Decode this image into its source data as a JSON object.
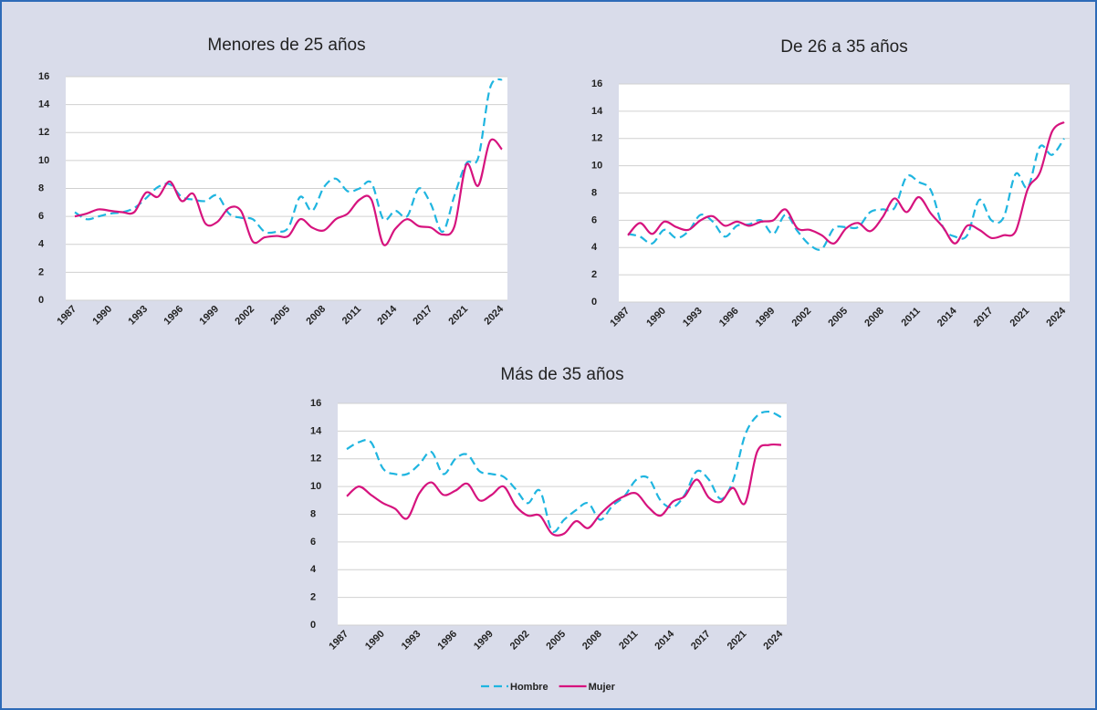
{
  "chart_data": [
    {
      "type": "line",
      "title": "Menores de 25 años",
      "categories": [
        "1987",
        null,
        null,
        "1990",
        null,
        null,
        "1993",
        null,
        null,
        "1996",
        null,
        null,
        "1999",
        null,
        null,
        "2002",
        null,
        null,
        "2005",
        null,
        null,
        "2008",
        null,
        null,
        "2011",
        null,
        null,
        "2014",
        null,
        null,
        "2017",
        null,
        null,
        "2021",
        null,
        null,
        "2024"
      ],
      "ylim": [
        0,
        16
      ],
      "yticks": [
        0,
        2,
        4,
        6,
        8,
        10,
        12,
        14,
        16
      ],
      "grid": true,
      "series": [
        {
          "color": "#1fb5e0",
          "dashed": true,
          "values": [
            6.3,
            5.8,
            6.0,
            6.2,
            6.3,
            6.6,
            7.3,
            8.1,
            8.3,
            7.4,
            7.2,
            7.1,
            7.5,
            6.2,
            5.9,
            5.8,
            4.9,
            4.9,
            5.2,
            7.4,
            6.4,
            8.1,
            8.7,
            7.8,
            8.0,
            8.4,
            5.8,
            6.4,
            6.0,
            8.0,
            6.9,
            4.9,
            7.5,
            9.8,
            10.2,
            15.2,
            15.8
          ]
        },
        {
          "color": "#d6137e",
          "dashed": false,
          "values": [
            6.0,
            6.2,
            6.5,
            6.4,
            6.3,
            6.3,
            7.7,
            7.4,
            8.5,
            7.1,
            7.6,
            5.5,
            5.6,
            6.6,
            6.4,
            4.2,
            4.5,
            4.6,
            4.6,
            5.8,
            5.2,
            5.0,
            5.8,
            6.2,
            7.2,
            7.2,
            4.0,
            5.1,
            5.8,
            5.3,
            5.2,
            4.7,
            5.3,
            9.7,
            8.2,
            11.4,
            10.8
          ]
        }
      ]
    },
    {
      "type": "line",
      "title": "De 26 a 35 años",
      "categories": [
        "1987",
        null,
        null,
        "1990",
        null,
        null,
        "1993",
        null,
        null,
        "1996",
        null,
        null,
        "1999",
        null,
        null,
        "2002",
        null,
        null,
        "2005",
        null,
        null,
        "2008",
        null,
        null,
        "2011",
        null,
        null,
        "2014",
        null,
        null,
        "2017",
        null,
        null,
        "2021",
        null,
        null,
        "2024"
      ],
      "ylim": [
        0,
        16
      ],
      "yticks": [
        0,
        2,
        4,
        6,
        8,
        10,
        12,
        14,
        16
      ],
      "grid": true,
      "series": [
        {
          "color": "#1fb5e0",
          "dashed": true,
          "values": [
            5.0,
            4.8,
            4.3,
            5.3,
            4.7,
            5.2,
            6.4,
            5.9,
            4.8,
            5.6,
            5.7,
            6.0,
            5.0,
            6.4,
            5.2,
            4.2,
            3.9,
            5.4,
            5.5,
            5.5,
            6.6,
            6.8,
            6.9,
            9.2,
            8.8,
            8.2,
            5.5,
            4.8,
            4.9,
            7.5,
            6.0,
            6.2,
            9.4,
            8.4,
            11.4,
            10.8,
            12.0
          ]
        },
        {
          "color": "#d6137e",
          "dashed": false,
          "values": [
            4.9,
            5.8,
            5.0,
            5.9,
            5.5,
            5.3,
            6.0,
            6.3,
            5.6,
            5.9,
            5.6,
            5.9,
            6.0,
            6.8,
            5.4,
            5.3,
            4.9,
            4.3,
            5.4,
            5.8,
            5.2,
            6.2,
            7.6,
            6.6,
            7.7,
            6.5,
            5.5,
            4.3,
            5.6,
            5.3,
            4.7,
            4.9,
            5.2,
            8.3,
            9.5,
            12.5,
            13.2
          ]
        }
      ]
    },
    {
      "type": "line",
      "title": "Más de 35 años",
      "categories": [
        "1987",
        null,
        null,
        "1990",
        null,
        null,
        "1993",
        null,
        null,
        "1996",
        null,
        null,
        "1999",
        null,
        null,
        "2002",
        null,
        null,
        "2005",
        null,
        null,
        "2008",
        null,
        null,
        "2011",
        null,
        null,
        "2014",
        null,
        null,
        "2017",
        null,
        null,
        "2021",
        null,
        null,
        "2024"
      ],
      "ylim": [
        0,
        16
      ],
      "yticks": [
        0,
        2,
        4,
        6,
        8,
        10,
        12,
        14,
        16
      ],
      "grid": true,
      "legend": "bottom",
      "series": [
        {
          "name": "Hombre",
          "color": "#1fb5e0",
          "dashed": true,
          "values": [
            12.7,
            13.2,
            13.2,
            11.3,
            10.9,
            10.9,
            11.6,
            12.5,
            10.9,
            12.0,
            12.3,
            11.1,
            10.9,
            10.7,
            9.8,
            8.8,
            9.7,
            6.8,
            7.6,
            8.3,
            8.8,
            7.6,
            8.6,
            9.3,
            10.5,
            10.6,
            9.0,
            8.5,
            9.4,
            11.1,
            10.5,
            9.1,
            10.4,
            13.7,
            15.1,
            15.4,
            15.0
          ]
        },
        {
          "name": "Mujer",
          "color": "#d6137e",
          "dashed": false,
          "values": [
            9.3,
            10.0,
            9.4,
            8.8,
            8.4,
            7.7,
            9.5,
            10.3,
            9.4,
            9.7,
            10.2,
            9.0,
            9.4,
            10.0,
            8.6,
            7.9,
            7.9,
            6.6,
            6.6,
            7.5,
            7.0,
            8.0,
            8.8,
            9.3,
            9.5,
            8.5,
            7.9,
            8.9,
            9.3,
            10.5,
            9.2,
            8.9,
            9.9,
            8.8,
            12.5,
            13.0,
            13.0
          ]
        }
      ]
    }
  ]
}
